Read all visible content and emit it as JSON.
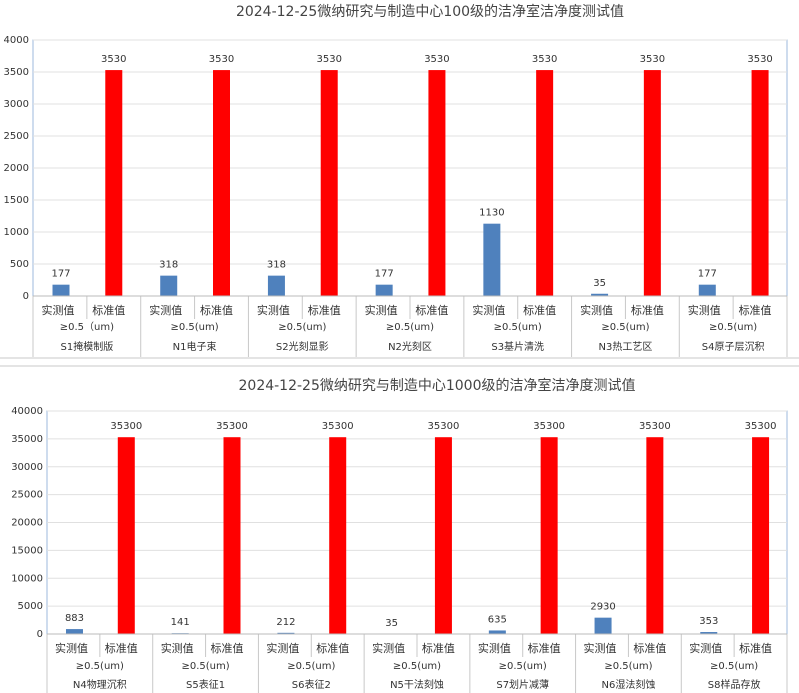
{
  "chart_data": [
    {
      "type": "bar",
      "title": "2024-12-25微纳研究与制造中心100级的洁净室洁净度测试值",
      "categories": [
        "S1掩模制版",
        "N1电子束",
        "S2光刻显影",
        "N2光刻区",
        "S3基片清洗",
        "N3热工艺区",
        "S4原子层沉积"
      ],
      "size_labels": [
        "≥0.5（um)",
        "≥0.5(um)",
        "≥0.5(um)",
        "≥0.5(um)",
        "≥0.5(um)",
        "≥0.5(um)",
        "≥0.5(um)"
      ],
      "series": [
        {
          "name": "实测值",
          "color": "#4f81bd",
          "values": [
            177,
            318,
            318,
            177,
            1130,
            35,
            177
          ]
        },
        {
          "name": "标准值",
          "color": "#ff0000",
          "values": [
            3530,
            3530,
            3530,
            3530,
            3530,
            3530,
            3530
          ]
        }
      ],
      "ylim": [
        0,
        4000
      ],
      "yticks": [
        0,
        500,
        1000,
        1500,
        2000,
        2500,
        3000,
        3500,
        4000
      ],
      "grid": true
    },
    {
      "type": "bar",
      "title": "2024-12-25微纳研究与制造中心1000级的洁净室洁净度测试值",
      "categories": [
        "N4物理沉积",
        "S5表征1",
        "S6表征2",
        "N5干法刻蚀",
        "S7划片减薄",
        "N6湿法刻蚀",
        "S8样品存放"
      ],
      "size_labels": [
        "≥0.5(um)",
        "≥0.5(um)",
        "≥0.5(um)",
        "≥0.5(um)",
        "≥0.5(um)",
        "≥0.5(um)",
        "≥0.5(um)"
      ],
      "series": [
        {
          "name": "实测值",
          "color": "#4f81bd",
          "values": [
            883,
            141,
            212,
            35,
            635,
            2930,
            353
          ]
        },
        {
          "name": "标准值",
          "color": "#ff0000",
          "values": [
            35300,
            35300,
            35300,
            35300,
            35300,
            35300,
            35300
          ]
        }
      ],
      "ylim": [
        0,
        40000
      ],
      "yticks": [
        0,
        5000,
        10000,
        15000,
        20000,
        25000,
        30000,
        35000,
        40000
      ],
      "grid": true
    }
  ]
}
